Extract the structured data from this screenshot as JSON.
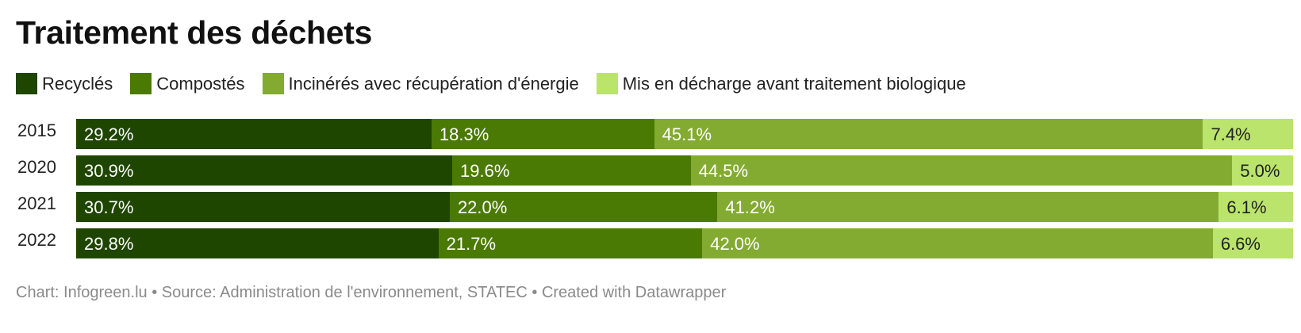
{
  "title": "Traitement des déchets",
  "footer": "Chart: Infogreen.lu • Source: Administration de l'environnement, STATEC • Created with Datawrapper",
  "chart_data": {
    "type": "bar",
    "orientation": "horizontal",
    "stacked": true,
    "normalized_percent": true,
    "title": "Traitement des déchets",
    "legend_position": "top",
    "categories": [
      "2015",
      "2020",
      "2021",
      "2022"
    ],
    "series": [
      {
        "name": "Recyclés",
        "color": "#1e4600",
        "label_color": "#ffffff",
        "values": [
          29.2,
          30.9,
          30.7,
          29.8
        ]
      },
      {
        "name": "Compostés",
        "color": "#4a7a03",
        "label_color": "#ffffff",
        "values": [
          18.3,
          19.6,
          22.0,
          21.7
        ]
      },
      {
        "name": "Incinérés avec récupération d'énergie",
        "color": "#83ab31",
        "label_color": "#ffffff",
        "values": [
          45.1,
          44.5,
          41.2,
          42.0
        ]
      },
      {
        "name": "Mis en décharge avant traitement biologique",
        "color": "#bbe46c",
        "label_color": "#222222",
        "values": [
          7.4,
          5.0,
          6.1,
          6.6
        ]
      }
    ]
  }
}
